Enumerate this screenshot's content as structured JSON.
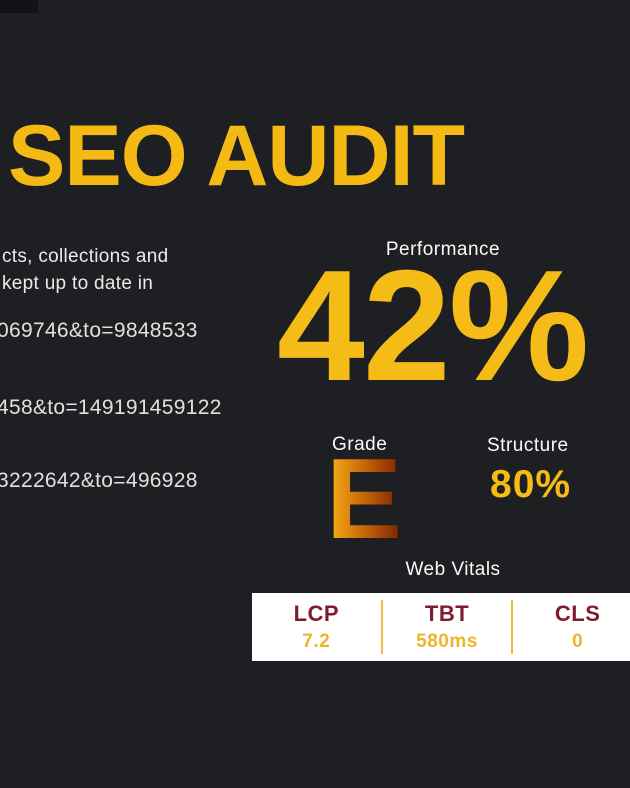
{
  "report": {
    "title": "SEO AUDIT",
    "intro_lines": [
      "cts, collections and",
      "kept up to date in"
    ],
    "url_fragments": [
      "069746&to=9848533",
      "458&to=149191459122",
      "3222642&to=496928"
    ],
    "performance": {
      "label": "Performance",
      "value": "42%"
    },
    "grade": {
      "label": "Grade",
      "value": "E"
    },
    "structure": {
      "label": "Structure",
      "value": "80%"
    },
    "web_vitals": {
      "title": "Web Vitals",
      "metrics": [
        {
          "name": "LCP",
          "value": "7.2"
        },
        {
          "name": "TBT",
          "value": "580ms"
        },
        {
          "name": "CLS",
          "value": "0"
        }
      ]
    }
  },
  "colors": {
    "background": "#1E1F22",
    "accent_gold": "#F5BB16",
    "maroon": "#7E1C2E",
    "grade_gradient_start": "#FDB515",
    "grade_gradient_end": "#7A1F05",
    "card_background": "#FFFFFF",
    "text_light": "#ECEAE7"
  }
}
